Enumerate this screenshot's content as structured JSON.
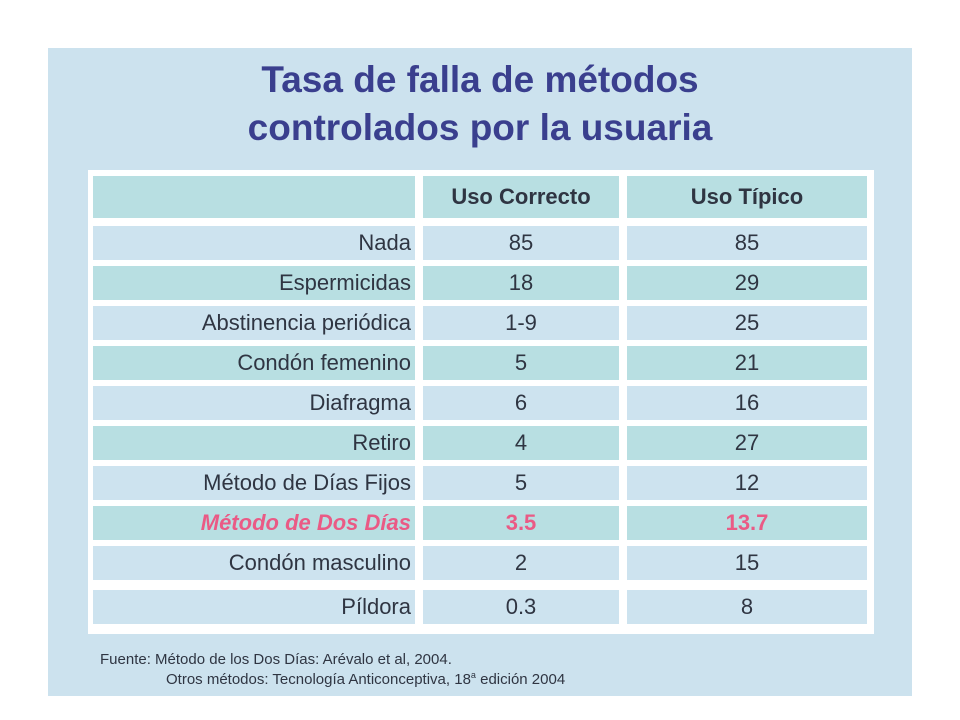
{
  "title": {
    "line1": "Tasa de falla de métodos",
    "line2": "controlados por la usuaria"
  },
  "table": {
    "headers": [
      "",
      "Uso Correcto",
      "Uso Típico"
    ],
    "rows": [
      {
        "method": "Nada",
        "correcto": "85",
        "tipico": "85",
        "highlight": false
      },
      {
        "method": "Espermicidas",
        "correcto": "18",
        "tipico": "29",
        "highlight": false
      },
      {
        "method": "Abstinencia periódica",
        "correcto": "1-9",
        "tipico": "25",
        "highlight": false
      },
      {
        "method": "Condón femenino",
        "correcto": "5",
        "tipico": "21",
        "highlight": false
      },
      {
        "method": "Diafragma",
        "correcto": "6",
        "tipico": "16",
        "highlight": false
      },
      {
        "method": "Retiro",
        "correcto": "4",
        "tipico": "27",
        "highlight": false
      },
      {
        "method": "Método de Días Fijos",
        "correcto": "5",
        "tipico": "12",
        "highlight": false
      },
      {
        "method": "Método de Dos Días",
        "correcto": "3.5",
        "tipico": "13.7",
        "highlight": true
      },
      {
        "method": "Condón masculino",
        "correcto": "2",
        "tipico": "15",
        "highlight": false
      },
      {
        "method": "Píldora",
        "correcto": "0.3",
        "tipico": "8",
        "highlight": false
      }
    ]
  },
  "source": {
    "line1": "Fuente: Método de los Dos Días:  Arévalo et al, 2004.",
    "line2_prefix": "Otros métodos:  Tecnología Anticonceptiva, 18",
    "line2_sup": "a",
    "line2_suffix": " edición 2004"
  },
  "colors": {
    "slide_background": "#cce2ee",
    "title": "#3a3f8e",
    "highlight": "#ea5a85",
    "row_light": "#cde3ef",
    "row_teal": "#b8dfe2"
  }
}
